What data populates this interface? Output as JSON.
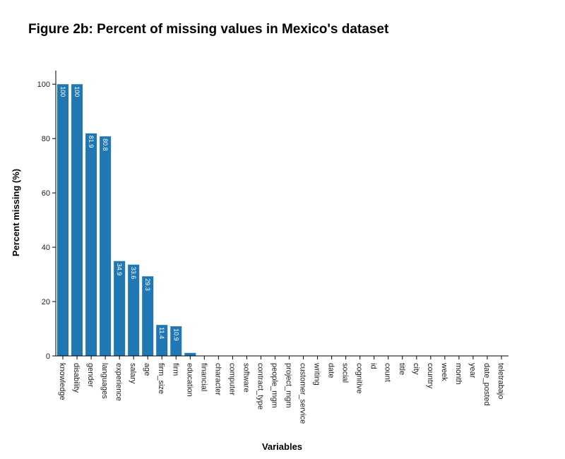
{
  "chart_data": {
    "type": "bar",
    "title": "Figure 2b: Percent of missing values in Mexico's dataset",
    "xlabel": "Variables",
    "ylabel": "Percent missing (%)",
    "ylim": [
      0,
      105
    ],
    "yticks": [
      0,
      20,
      40,
      60,
      80,
      100
    ],
    "bar_color": "#1f77b4",
    "grid": false,
    "categories": [
      "knowledge",
      "disability",
      "gender",
      "languages",
      "experience",
      "salary",
      "age",
      "firm_size",
      "firm",
      "education",
      "financial",
      "character",
      "computer",
      "software",
      "contract_type",
      "people_mgm",
      "project_mgm",
      "customer_service",
      "writing",
      "date",
      "social",
      "cognitive",
      "id",
      "count",
      "title",
      "city",
      "country",
      "week",
      "month",
      "year",
      "date_posted",
      "teletrabajo"
    ],
    "values": [
      100,
      100,
      81.9,
      80.8,
      34.9,
      33.6,
      29.3,
      11.4,
      10.9,
      1.1,
      0,
      0,
      0,
      0,
      0,
      0,
      0,
      0,
      0,
      0,
      0,
      0,
      0,
      0,
      0,
      0,
      0,
      0,
      0,
      0,
      0,
      0
    ],
    "data_labels": [
      "100",
      "100",
      "81.9",
      "80.8",
      "34.9",
      "33.6",
      "29.3",
      "11.4",
      "10.9",
      "1.1",
      "",
      "",
      "",
      "",
      "",
      "",
      "",
      "",
      "",
      "",
      "",
      "",
      "",
      "",
      "",
      "",
      "",
      "",
      "",
      "",
      "",
      ""
    ]
  }
}
